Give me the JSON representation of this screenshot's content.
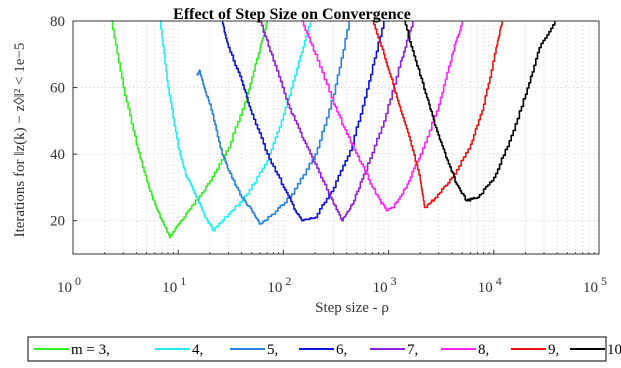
{
  "chart_data": {
    "type": "line",
    "title": "Effect of Step Size on Convergence",
    "xlabel": "Step size - ρ",
    "ylabel": "Iterations for ‖z(k) − z◊‖² < 1e−5",
    "xscale": "log",
    "xlim": [
      1,
      100000
    ],
    "ylim": [
      10,
      80
    ],
    "x_ticks": [
      {
        "base": "10",
        "exp": "0"
      },
      {
        "base": "10",
        "exp": "1"
      },
      {
        "base": "10",
        "exp": "2"
      },
      {
        "base": "10",
        "exp": "3"
      },
      {
        "base": "10",
        "exp": "4"
      },
      {
        "base": "10",
        "exp": "5"
      }
    ],
    "y_ticks": [
      "20",
      "40",
      "60",
      "80"
    ],
    "grid": true,
    "legend_position": "bottom",
    "series": [
      {
        "name": "m = 3,",
        "legend_label": "m = 3,",
        "color": "#33ee22",
        "x": [
          2.3,
          3,
          4,
          5,
          6,
          7,
          8.3,
          10,
          14,
          20,
          30,
          45,
          60,
          70
        ],
        "y": [
          80,
          60,
          43,
          32,
          25,
          20,
          15,
          19,
          25,
          32,
          42,
          58,
          72,
          80
        ]
      },
      {
        "name": "4,",
        "legend_label": "4,",
        "color": "#22eeee",
        "x": [
          6.7,
          8,
          10,
          12,
          15,
          18,
          21.5,
          30,
          45,
          70,
          100,
          140,
          180
        ],
        "y": [
          80,
          60,
          42,
          33,
          27,
          21,
          17,
          22,
          28,
          38,
          52,
          68,
          80
        ]
      },
      {
        "name": "5,",
        "legend_label": "5,",
        "color": "#2a82e0",
        "x": [
          15,
          16,
          18,
          20,
          25,
          30,
          40,
          50,
          59,
          80,
          120,
          200,
          300,
          420
        ],
        "y": [
          64,
          65,
          59,
          55,
          42,
          35,
          27,
          23,
          19,
          22,
          28,
          40,
          58,
          80
        ]
      },
      {
        "name": "6,",
        "legend_label": "6,",
        "color": "#0b12d8",
        "x": [
          26,
          30,
          40,
          50,
          70,
          100,
          130,
          150,
          200,
          300,
          450,
          650,
          900
        ],
        "y": [
          80,
          72,
          62,
          52,
          40,
          30,
          23,
          20,
          21,
          30,
          43,
          62,
          80
        ]
      },
      {
        "name": "7,",
        "legend_label": "7,",
        "color": "#9020e0",
        "x": [
          60,
          80,
          110,
          150,
          200,
          280,
          360,
          450,
          600,
          900,
          1300,
          1700
        ],
        "y": [
          80,
          68,
          55,
          45,
          37,
          27,
          20,
          25,
          35,
          50,
          68,
          80
        ]
      },
      {
        "name": "8,",
        "legend_label": "8,",
        "color": "#ff22ff",
        "x": [
          150,
          200,
          300,
          400,
          550,
          750,
          950,
          1100,
          1500,
          2000,
          3000,
          4000,
          5000
        ],
        "y": [
          80,
          70,
          55,
          46,
          37,
          28,
          23,
          24,
          31,
          40,
          55,
          70,
          80
        ]
      },
      {
        "name": "9,",
        "legend_label": "9,",
        "color": "#ee1111",
        "x": [
          700,
          900,
          1100,
          1300,
          1600,
          2000,
          2200,
          2800,
          4000,
          6000,
          8000,
          10500,
          12000
        ],
        "y": [
          80,
          70,
          61,
          53,
          44,
          32,
          24,
          27,
          33,
          43,
          55,
          72,
          80
        ]
      },
      {
        "name": "10",
        "legend_label": "10",
        "color": "#000000",
        "x": [
          1400,
          1800,
          2300,
          2800,
          3500,
          4400,
          5500,
          7000,
          10000,
          14000,
          20000,
          27000,
          38000
        ],
        "y": [
          80,
          68,
          57,
          48,
          39,
          31,
          26,
          27,
          33,
          44,
          58,
          72,
          80
        ]
      }
    ]
  }
}
